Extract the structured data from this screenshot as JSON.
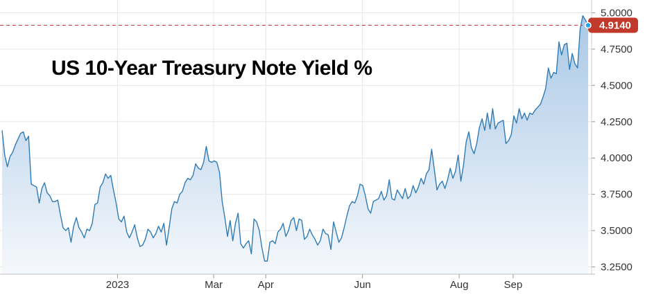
{
  "chart_data": {
    "type": "area",
    "title": "US 10-Year Treasury Note Yield %",
    "xlabel": "",
    "ylabel": "",
    "ylim": [
      3.2,
      5.05
    ],
    "yticks": [
      "3.2500",
      "3.5000",
      "3.7500",
      "4.0000",
      "4.2500",
      "4.5000",
      "4.7500",
      "5.0000"
    ],
    "xticks": [
      "2023",
      "Mar",
      "Apr",
      "Jun",
      "Aug",
      "Sep"
    ],
    "grid": true,
    "last_value": 4.914,
    "last_value_label": "4.9140",
    "colors": {
      "line": "#2f7bb5",
      "fill_top": "#a9c8e6",
      "fill_bottom": "#f3f7fc",
      "marker": "#c0392b",
      "grid": "#e6e6e6"
    },
    "series": [
      {
        "values": [
          4.19,
          4.02,
          3.94,
          4.01,
          4.04,
          4.09,
          4.13,
          4.17,
          4.18,
          4.12,
          4.15,
          3.82,
          3.81,
          3.8,
          3.69,
          3.79,
          3.83,
          3.76,
          3.74,
          3.7,
          3.7,
          3.71,
          3.61,
          3.52,
          3.5,
          3.52,
          3.42,
          3.53,
          3.59,
          3.52,
          3.49,
          3.45,
          3.51,
          3.5,
          3.55,
          3.68,
          3.69,
          3.8,
          3.83,
          3.89,
          3.86,
          3.88,
          3.78,
          3.69,
          3.58,
          3.56,
          3.6,
          3.49,
          3.45,
          3.49,
          3.54,
          3.45,
          3.39,
          3.4,
          3.44,
          3.51,
          3.49,
          3.45,
          3.48,
          3.53,
          3.49,
          3.55,
          3.4,
          3.52,
          3.65,
          3.7,
          3.69,
          3.75,
          3.77,
          3.83,
          3.86,
          3.85,
          3.88,
          3.96,
          3.93,
          3.92,
          3.97,
          4.08,
          3.98,
          3.97,
          3.98,
          3.97,
          3.9,
          3.7,
          3.59,
          3.46,
          3.57,
          3.43,
          3.55,
          3.62,
          3.41,
          3.38,
          3.41,
          3.43,
          3.34,
          3.58,
          3.56,
          3.5,
          3.38,
          3.29,
          3.29,
          3.42,
          3.43,
          3.41,
          3.49,
          3.51,
          3.55,
          3.46,
          3.5,
          3.57,
          3.59,
          3.5,
          3.58,
          3.57,
          3.44,
          3.46,
          3.51,
          3.47,
          3.44,
          3.4,
          3.43,
          3.51,
          3.48,
          3.47,
          3.37,
          3.56,
          3.49,
          3.42,
          3.45,
          3.52,
          3.6,
          3.67,
          3.7,
          3.69,
          3.74,
          3.82,
          3.81,
          3.74,
          3.65,
          3.62,
          3.7,
          3.71,
          3.72,
          3.77,
          3.71,
          3.74,
          3.85,
          3.72,
          3.71,
          3.78,
          3.75,
          3.72,
          3.79,
          3.72,
          3.74,
          3.81,
          3.76,
          3.8,
          3.86,
          3.82,
          3.89,
          3.92,
          4.06,
          3.92,
          3.78,
          3.82,
          3.84,
          3.79,
          3.85,
          3.93,
          3.86,
          3.91,
          4.02,
          3.84,
          3.95,
          4.11,
          4.18,
          4.07,
          4.03,
          4.1,
          4.21,
          4.27,
          4.19,
          4.31,
          4.2,
          4.34,
          4.2,
          4.24,
          4.25,
          4.26,
          4.1,
          4.12,
          4.16,
          4.29,
          4.24,
          4.34,
          4.27,
          4.31,
          4.26,
          4.31,
          4.3,
          4.33,
          4.35,
          4.37,
          4.42,
          4.48,
          4.62,
          4.55,
          4.59,
          4.58,
          4.8,
          4.71,
          4.78,
          4.79,
          4.61,
          4.72,
          4.65,
          4.62,
          4.89,
          4.98,
          4.95,
          4.914
        ]
      }
    ]
  }
}
